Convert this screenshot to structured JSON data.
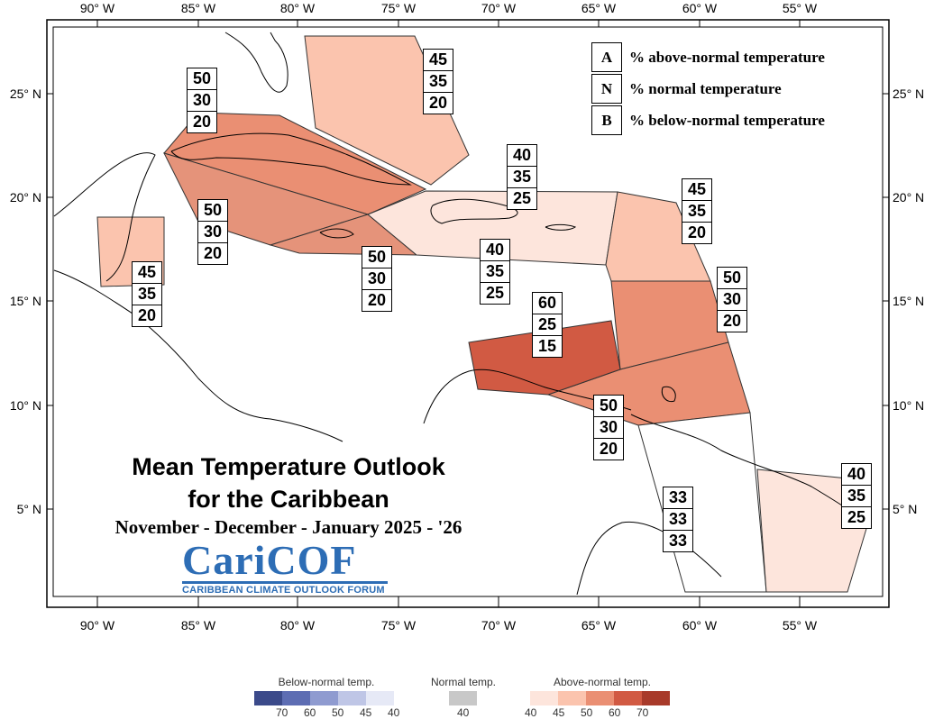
{
  "map": {
    "lon_ticks": [
      "90° W",
      "85° W",
      "80° W",
      "75° W",
      "70° W",
      "65° W",
      "60° W",
      "55° W"
    ],
    "lat_ticks": [
      "25° N",
      "20° N",
      "15° N",
      "10° N",
      "5° N"
    ]
  },
  "legend_key": [
    {
      "letter": "A",
      "text": "% above-normal temperature"
    },
    {
      "letter": "N",
      "text": "% normal temperature"
    },
    {
      "letter": "B",
      "text": "% below-normal temperature"
    }
  ],
  "regions": [
    {
      "name": "bahamas",
      "values": [
        "45",
        "35",
        "20"
      ],
      "color": "#fbc4ae"
    },
    {
      "name": "cuba",
      "values": [
        "50",
        "30",
        "20"
      ],
      "color": "#ea8f73"
    },
    {
      "name": "cayman",
      "values": [
        "50",
        "30",
        "20"
      ],
      "color": "#ea8f73"
    },
    {
      "name": "jamaica",
      "values": [
        "50",
        "30",
        "20"
      ],
      "color": "#ea8f73"
    },
    {
      "name": "hispaniola",
      "values": [
        "40",
        "35",
        "25"
      ],
      "color": "#fde5dc"
    },
    {
      "name": "puerto-rico",
      "values": [
        "40",
        "35",
        "25"
      ],
      "color": "#fde5dc"
    },
    {
      "name": "belize",
      "values": [
        "45",
        "35",
        "20"
      ],
      "color": "#fbc4ae"
    },
    {
      "name": "leeward",
      "values": [
        "45",
        "35",
        "20"
      ],
      "color": "#fbc4ae"
    },
    {
      "name": "windward",
      "values": [
        "50",
        "30",
        "20"
      ],
      "color": "#ea8f73"
    },
    {
      "name": "abc-islands",
      "values": [
        "60",
        "25",
        "15"
      ],
      "color": "#d15a43"
    },
    {
      "name": "trinidad",
      "values": [
        "50",
        "30",
        "20"
      ],
      "color": "#ea8f73"
    },
    {
      "name": "guyana",
      "values": [
        "33",
        "33",
        "33"
      ],
      "color": "#ffffff"
    },
    {
      "name": "french-guiana",
      "values": [
        "40",
        "35",
        "25"
      ],
      "color": "#fde5dc"
    }
  ],
  "title": {
    "line1": "Mean Temperature Outlook",
    "line2": "for the Caribbean",
    "period": "November - December - January 2025 - '26"
  },
  "logo": {
    "main": "CariCOF",
    "sub": "CARIBBEAN CLIMATE OUTLOOK FORUM"
  },
  "scale": {
    "below": {
      "title": "Below-normal temp.",
      "ticks": [
        "70",
        "60",
        "50",
        "45",
        "40"
      ],
      "colors": [
        "#3b4a8a",
        "#5d6db3",
        "#8f9bd0",
        "#bfc6e6",
        "#e6e9f6"
      ]
    },
    "normal": {
      "title": "Normal temp.",
      "ticks": [
        "40"
      ],
      "colors": [
        "#c8c8c8"
      ]
    },
    "above": {
      "title": "Above-normal temp.",
      "ticks": [
        "40",
        "45",
        "50",
        "60",
        "70"
      ],
      "colors": [
        "#fde5dc",
        "#fbc4ae",
        "#ea8f73",
        "#d15a43",
        "#a83a2a"
      ]
    }
  }
}
